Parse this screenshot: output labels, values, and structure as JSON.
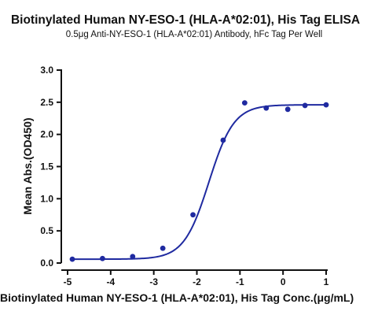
{
  "chart_data": {
    "type": "scatter",
    "title": "Biotinylated Human NY-ESO-1 (HLA-A*02:01), His Tag ELISA",
    "subtitle": "0.5μg Anti-NY-ESO-1 (HLA-A*02:01) Antibody, hFc Tag Per Well",
    "xlabel": "Biotinylated Human NY-ESO-1 (HLA-A*02:01), His Tag Conc.(μg/mL)",
    "ylabel": "Mean Abs.(OD450)",
    "xlim": [
      -5,
      1
    ],
    "ylim": [
      0,
      3.0
    ],
    "x_ticks": [
      "-5",
      "-4",
      "-3",
      "-2",
      "-1",
      "0",
      "1"
    ],
    "y_ticks": [
      "0.0",
      "0.5",
      "1.0",
      "1.5",
      "2.0",
      "2.5",
      "3.0"
    ],
    "grid": false,
    "series_color": "#1f2aa0",
    "series": [
      {
        "x": [
          -4.89,
          -4.19,
          -3.49,
          -2.79,
          -2.09,
          -1.39,
          -0.89,
          -0.39,
          0.11,
          0.51,
          1.0
        ],
        "values": [
          0.06,
          0.07,
          0.1,
          0.23,
          0.75,
          1.91,
          2.49,
          2.41,
          2.39,
          2.45,
          2.46
        ]
      }
    ],
    "fit_curve": {
      "model": "4PL",
      "bottom": 0.06,
      "top": 2.46,
      "log_ec50": -1.72,
      "hill_slope": 1.5
    }
  }
}
